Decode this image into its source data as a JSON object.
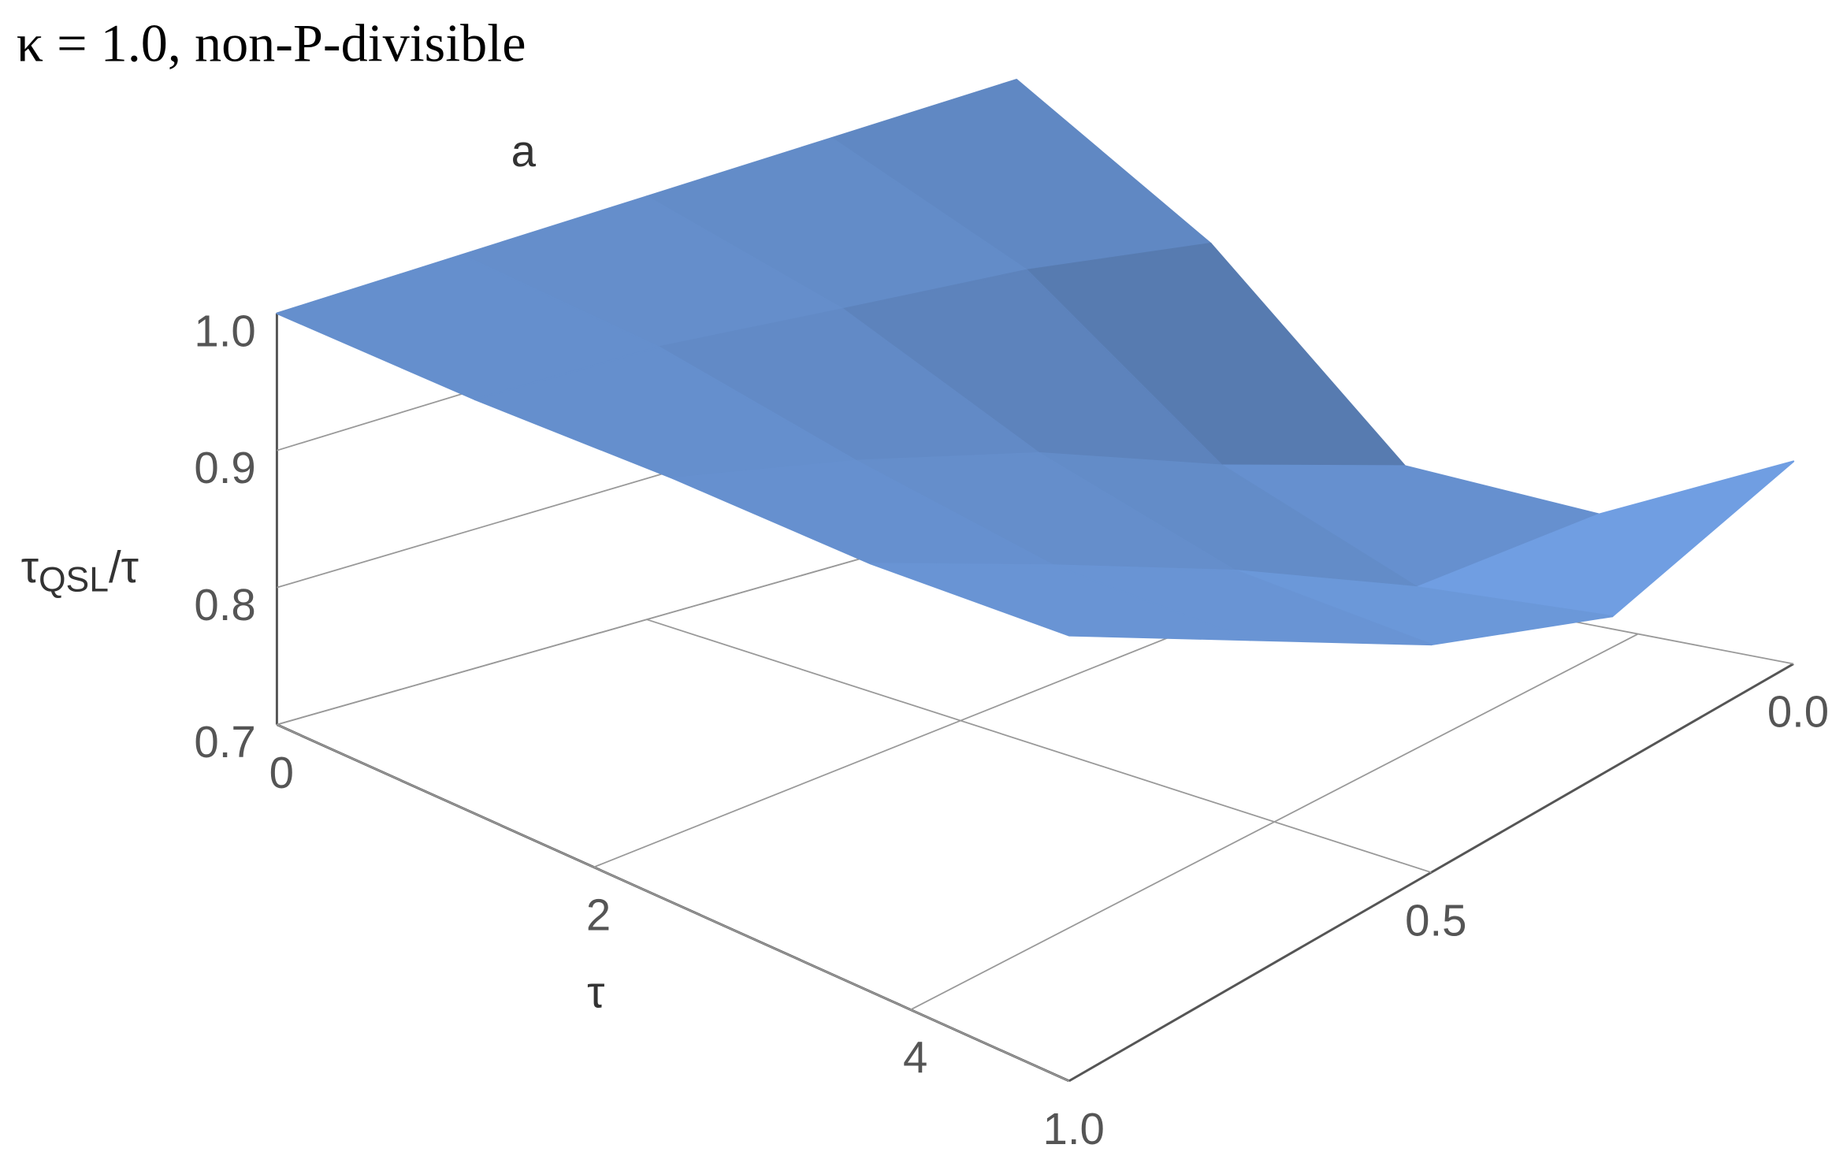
{
  "chart_data": {
    "type": "surface3d",
    "title": "κ = 1.0, non-P-divisible",
    "x_label": "τ",
    "y_label": "a",
    "z_label": [
      "τ",
      "QSL",
      "/τ"
    ],
    "x": [
      0,
      1.25,
      2.5,
      3.75,
      5
    ],
    "y": [
      0,
      0.25,
      0.5,
      0.75,
      1
    ],
    "z": [
      [
        1,
        0.93,
        0.8,
        0.8,
        0.9
      ],
      [
        1,
        0.95,
        0.85,
        0.8,
        0.82
      ],
      [
        1,
        0.96,
        0.9,
        0.86,
        0.85
      ],
      [
        1,
        0.97,
        0.93,
        0.9,
        0.89
      ],
      [
        1,
        0.97,
        0.95,
        0.93,
        0.92
      ]
    ],
    "color": "#6b97d8",
    "xlim": [
      0,
      5
    ],
    "ylim": [
      0,
      1
    ],
    "zlim": [
      0.7,
      1.0
    ],
    "xticks": [
      0,
      2,
      4
    ],
    "yticks": [
      {
        "value": 0,
        "label": "0.0"
      },
      0.5,
      {
        "value": 1,
        "label": "1.0"
      }
    ],
    "zticks": [
      0.7,
      0.8,
      0.9,
      {
        "value": 1,
        "label": "1.0"
      }
    ],
    "grid": true
  }
}
